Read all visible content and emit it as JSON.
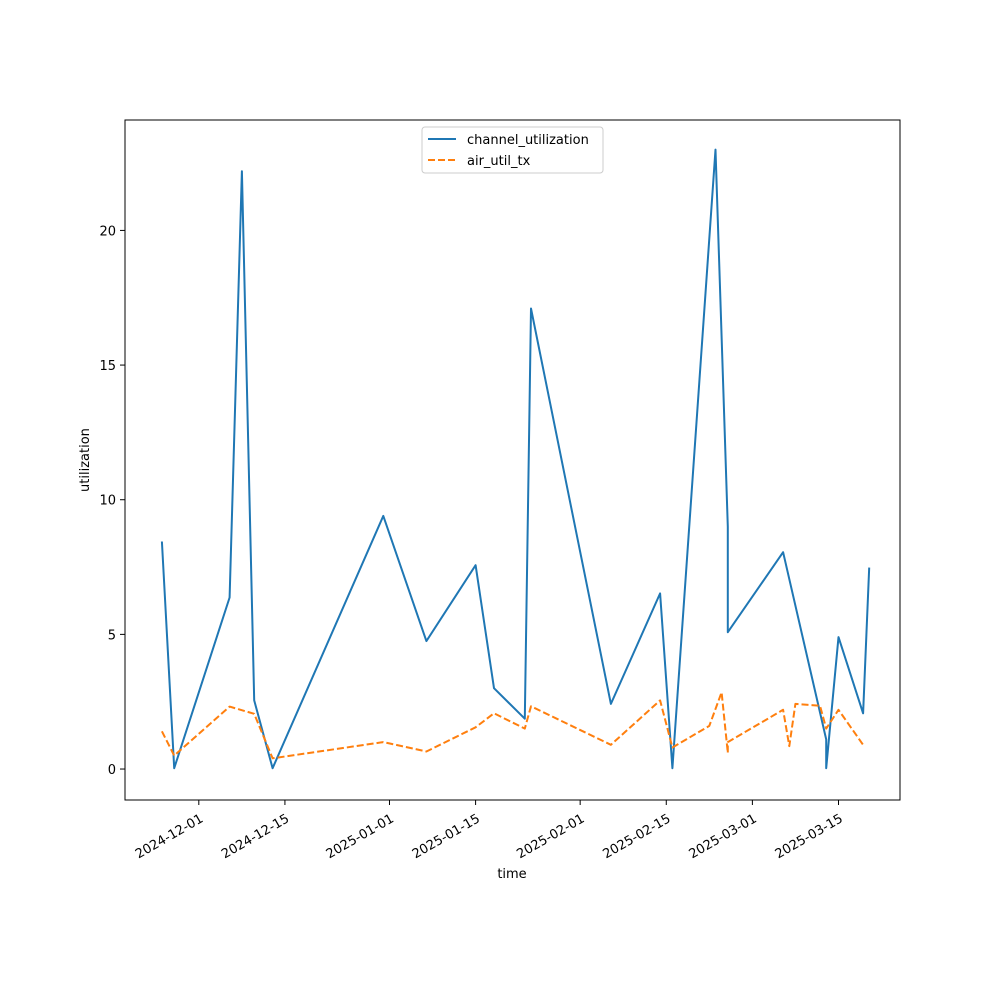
{
  "chart_data": {
    "type": "line",
    "title": "",
    "xlabel": "time",
    "ylabel": "utilization",
    "xlim": [
      "2024-11-19",
      "2025-03-25"
    ],
    "ylim": [
      -1.15,
      24.1
    ],
    "grid": false,
    "legend_position": "top-center",
    "x_ticks": [
      "2024-12-01",
      "2024-12-15",
      "2025-01-01",
      "2025-01-15",
      "2025-02-01",
      "2025-02-15",
      "2025-03-01",
      "2025-03-15"
    ],
    "y_ticks": [
      0,
      5,
      10,
      15,
      20
    ],
    "series": [
      {
        "name": "channel_utilization",
        "color": "#1f77b4",
        "style": "solid",
        "points": [
          [
            "2024-11-25",
            8.45
          ],
          [
            "2024-11-27",
            0.03
          ],
          [
            "2024-12-06",
            6.37
          ],
          [
            "2024-12-08",
            22.2
          ],
          [
            "2024-12-10",
            2.55
          ],
          [
            "2024-12-13",
            0.03
          ],
          [
            "2024-12-31",
            9.4
          ],
          [
            "2025-01-07",
            4.75
          ],
          [
            "2025-01-15",
            7.57
          ],
          [
            "2025-01-18",
            3.0
          ],
          [
            "2025-01-23",
            1.87
          ],
          [
            "2025-01-24",
            17.1
          ],
          [
            "2025-02-06",
            2.42
          ],
          [
            "2025-02-14",
            6.52
          ],
          [
            "2025-02-16",
            0.03
          ],
          [
            "2025-02-23",
            23.0
          ],
          [
            "2025-02-25",
            9.0
          ],
          [
            "2025-02-25",
            5.08
          ],
          [
            "2025-03-06",
            8.05
          ],
          [
            "2025-03-13",
            1.1
          ],
          [
            "2025-03-13",
            0.03
          ],
          [
            "2025-03-15",
            4.9
          ],
          [
            "2025-03-19",
            2.07
          ],
          [
            "2025-03-20",
            7.48
          ]
        ]
      },
      {
        "name": "air_util_tx",
        "color": "#ff7f0e",
        "style": "dashed",
        "points": [
          [
            "2024-11-25",
            1.4
          ],
          [
            "2024-11-27",
            0.5
          ],
          [
            "2024-12-06",
            2.32
          ],
          [
            "2024-12-10",
            2.05
          ],
          [
            "2024-12-13",
            0.4
          ],
          [
            "2024-12-31",
            1.0
          ],
          [
            "2025-01-07",
            0.65
          ],
          [
            "2025-01-15",
            1.55
          ],
          [
            "2025-01-18",
            2.07
          ],
          [
            "2025-01-23",
            1.5
          ],
          [
            "2025-01-24",
            2.33
          ],
          [
            "2025-02-06",
            0.9
          ],
          [
            "2025-02-14",
            2.55
          ],
          [
            "2025-02-16",
            0.8
          ],
          [
            "2025-02-22",
            1.6
          ],
          [
            "2025-02-24",
            2.85
          ],
          [
            "2025-02-25",
            0.6
          ],
          [
            "2025-02-25",
            1.0
          ],
          [
            "2025-03-06",
            2.2
          ],
          [
            "2025-03-07",
            0.85
          ],
          [
            "2025-03-08",
            2.42
          ],
          [
            "2025-03-12",
            2.35
          ],
          [
            "2025-03-13",
            1.5
          ],
          [
            "2025-03-15",
            2.2
          ],
          [
            "2025-03-19",
            0.9
          ]
        ]
      }
    ]
  }
}
